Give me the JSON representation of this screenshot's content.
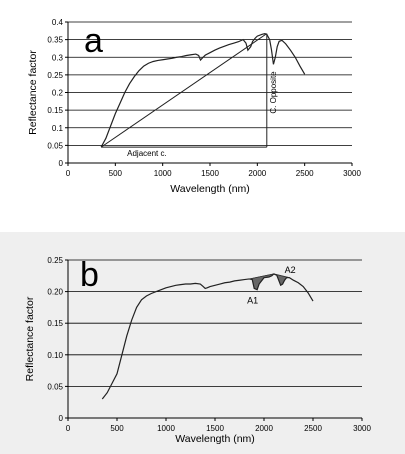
{
  "chart_data": [
    {
      "type": "line",
      "panel_label": "a",
      "xlabel": "Wavelength (nm)",
      "ylabel": "Reflectance factor",
      "xlim": [
        0,
        3000
      ],
      "ylim": [
        0,
        0.4
      ],
      "x_ticks": [
        0,
        500,
        1000,
        1500,
        2000,
        2500,
        3000
      ],
      "y_ticks": [
        "0",
        "0.05",
        "0.1",
        "0.15",
        "0.2",
        "0.25",
        "0.3",
        "0.35",
        "0.4"
      ],
      "y_tick_values": [
        0,
        0.05,
        0.1,
        0.15,
        0.2,
        0.25,
        0.3,
        0.35,
        0.4
      ],
      "grid": true,
      "series": [
        {
          "x": [
            350,
            400,
            450,
            500,
            550,
            600,
            650,
            700,
            750,
            800,
            850,
            900,
            950,
            1000,
            1050,
            1100,
            1150,
            1200,
            1250,
            1300,
            1350,
            1380,
            1400,
            1420,
            1450,
            1500,
            1550,
            1600,
            1650,
            1700,
            1750,
            1800,
            1850,
            1880,
            1900,
            1930,
            1950,
            1980,
            2000,
            2050,
            2080,
            2100,
            2130,
            2150,
            2170,
            2190,
            2210,
            2230,
            2260,
            2300,
            2350,
            2400,
            2450,
            2500
          ],
          "y": [
            0.045,
            0.07,
            0.105,
            0.14,
            0.17,
            0.2,
            0.225,
            0.245,
            0.262,
            0.275,
            0.283,
            0.288,
            0.291,
            0.293,
            0.295,
            0.297,
            0.3,
            0.302,
            0.305,
            0.307,
            0.309,
            0.305,
            0.292,
            0.298,
            0.306,
            0.313,
            0.32,
            0.326,
            0.331,
            0.336,
            0.34,
            0.344,
            0.35,
            0.34,
            0.32,
            0.33,
            0.345,
            0.355,
            0.36,
            0.365,
            0.367,
            0.365,
            0.35,
            0.32,
            0.28,
            0.3,
            0.33,
            0.345,
            0.348,
            0.338,
            0.32,
            0.3,
            0.275,
            0.252
          ]
        }
      ],
      "annotations": [
        {
          "text": "Adjacent c."
        },
        {
          "text": "C. Opposite"
        }
      ],
      "adjacent_line": {
        "x": [
          350,
          2100
        ],
        "y": [
          0.045,
          0.045
        ]
      },
      "opposite_line": {
        "x": [
          2100,
          2100
        ],
        "y": [
          0.045,
          0.367
        ]
      },
      "hypotenuse_line": {
        "x": [
          350,
          2100
        ],
        "y": [
          0.045,
          0.367
        ]
      }
    },
    {
      "type": "line",
      "panel_label": "b",
      "xlabel": "Wavelength (nm)",
      "ylabel": "Reflectance factor",
      "xlim": [
        0,
        3000
      ],
      "ylim": [
        0,
        0.25
      ],
      "x_ticks": [
        0,
        500,
        1000,
        1500,
        2000,
        2500,
        3000
      ],
      "y_ticks": [
        "0",
        "0.05",
        "0.10",
        "0.15",
        "0.20",
        "0.25"
      ],
      "y_tick_values": [
        0,
        0.05,
        0.1,
        0.15,
        0.2,
        0.25
      ],
      "grid": true,
      "series": [
        {
          "x": [
            350,
            400,
            450,
            500,
            550,
            600,
            650,
            700,
            750,
            800,
            850,
            900,
            950,
            1000,
            1050,
            1100,
            1150,
            1200,
            1250,
            1300,
            1350,
            1380,
            1400,
            1420,
            1450,
            1500,
            1550,
            1600,
            1650,
            1700,
            1750,
            1800,
            1850,
            1880,
            1900,
            1930,
            1950,
            1980,
            2000,
            2050,
            2080,
            2100,
            2130,
            2150,
            2170,
            2190,
            2210,
            2230,
            2260,
            2300,
            2350,
            2400,
            2450,
            2500
          ],
          "y": [
            0.03,
            0.04,
            0.055,
            0.07,
            0.1,
            0.13,
            0.155,
            0.175,
            0.187,
            0.193,
            0.197,
            0.2,
            0.203,
            0.206,
            0.208,
            0.21,
            0.211,
            0.212,
            0.212,
            0.213,
            0.212,
            0.208,
            0.205,
            0.206,
            0.208,
            0.21,
            0.212,
            0.214,
            0.215,
            0.217,
            0.218,
            0.219,
            0.22,
            0.219,
            0.205,
            0.203,
            0.212,
            0.218,
            0.222,
            0.223,
            0.225,
            0.228,
            0.226,
            0.218,
            0.21,
            0.212,
            0.218,
            0.222,
            0.222,
            0.218,
            0.214,
            0.208,
            0.198,
            0.185
          ]
        }
      ],
      "annotations": [
        {
          "text": "A1"
        },
        {
          "text": "A2"
        }
      ],
      "shaded_areas": [
        {
          "name": "A1",
          "x": [
            1850,
            1880,
            1900,
            1930,
            1950,
            1980,
            2000,
            2050,
            2080,
            2100
          ],
          "y": [
            0.22,
            0.219,
            0.205,
            0.203,
            0.212,
            0.218,
            0.222,
            0.223,
            0.225,
            0.228
          ]
        },
        {
          "name": "A2",
          "x": [
            2100,
            2130,
            2150,
            2170,
            2190,
            2210,
            2230,
            2260
          ],
          "y": [
            0.228,
            0.226,
            0.218,
            0.21,
            0.212,
            0.218,
            0.222,
            0.222
          ]
        }
      ]
    }
  ]
}
